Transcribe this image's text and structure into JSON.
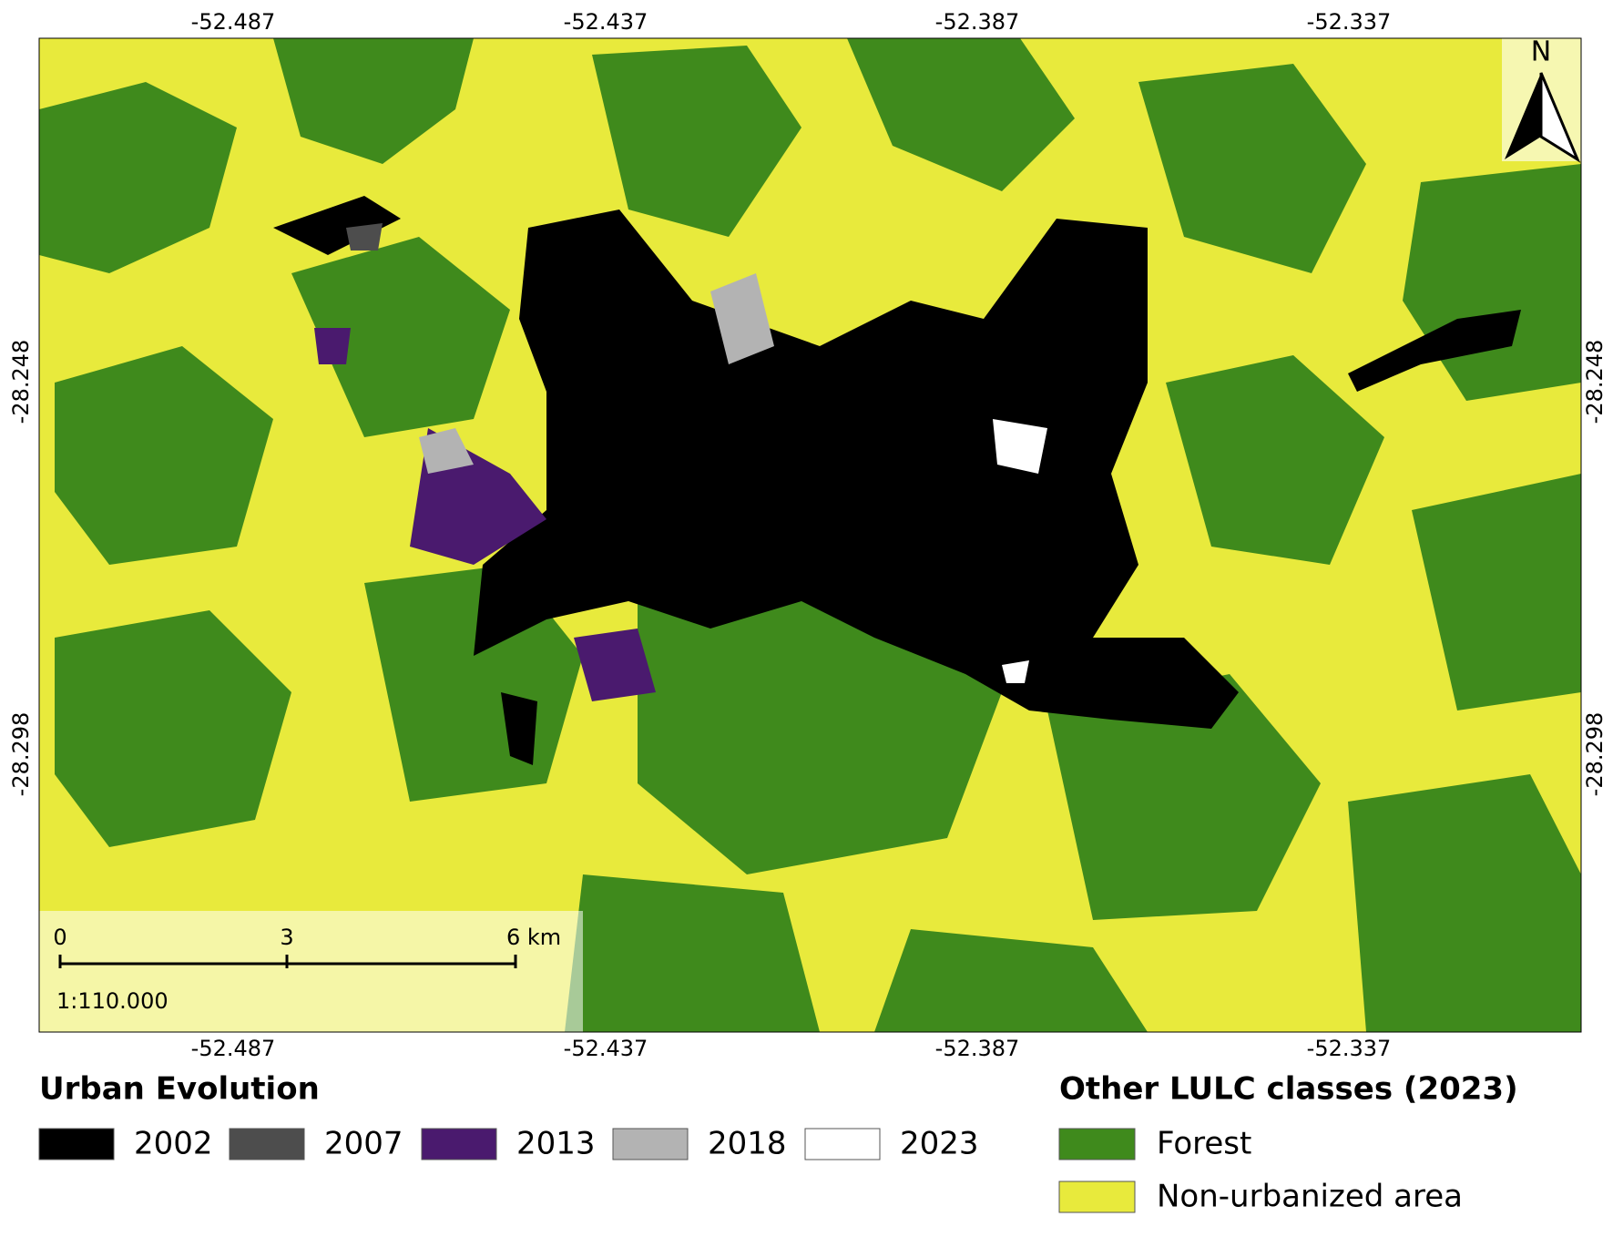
{
  "map": {
    "x_labels": [
      "-52.487",
      "-52.437",
      "-52.387",
      "-52.337"
    ],
    "y_labels": [
      "-28.248",
      "-28.298"
    ],
    "north": "N",
    "scale_bar": {
      "labels": [
        "0",
        "3",
        "6 km"
      ],
      "scale": "1:110.000"
    }
  },
  "legend_urban": {
    "title": "Urban Evolution",
    "items": [
      {
        "label": "2002",
        "color": "#000000"
      },
      {
        "label": "2007",
        "color": "#4d4d4d"
      },
      {
        "label": "2013",
        "color": "#4a1a6e"
      },
      {
        "label": "2018",
        "color": "#b3b3b3"
      },
      {
        "label": "2023",
        "color": "#ffffff"
      }
    ]
  },
  "legend_other": {
    "title": "Other LULC classes (2023)",
    "items": [
      {
        "label": "Forest",
        "color": "#3f8a1c"
      },
      {
        "label": "Non-urbanized area",
        "color": "#e8ea3c"
      }
    ]
  }
}
